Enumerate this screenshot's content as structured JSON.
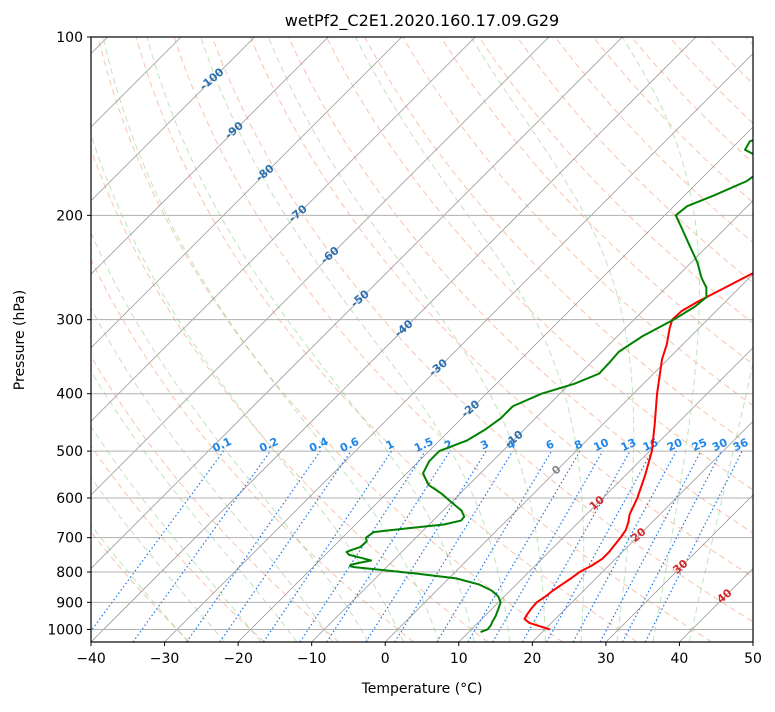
{
  "chart_data": {
    "type": "line",
    "title": "wetPf2_C2E1.2020.160.17.09.G29",
    "xlabel": "Temperature (°C)",
    "ylabel": "Pressure (hPa)",
    "xlim": [
      -40,
      50
    ],
    "ylim": [
      1050,
      100
    ],
    "y_scale": "log",
    "grid": true,
    "x_ticks": [
      -40,
      -30,
      -20,
      -10,
      0,
      10,
      20,
      30,
      40,
      50
    ],
    "x_tick_labels": [
      "−40",
      "−30",
      "−20",
      "−10",
      "0",
      "10",
      "20",
      "30",
      "40",
      "50"
    ],
    "y_ticks": [
      100,
      200,
      300,
      400,
      500,
      600,
      700,
      800,
      900,
      1000
    ],
    "y_tick_labels": [
      "100",
      "200",
      "300",
      "400",
      "500",
      "600",
      "700",
      "800",
      "900",
      "1000"
    ],
    "isotherm_labels": [
      {
        "t": -100,
        "p": 118,
        "text": "-100",
        "color": "#2a6fb0"
      },
      {
        "t": -90,
        "p": 144,
        "text": "-90",
        "color": "#2a6fb0"
      },
      {
        "t": -80,
        "p": 170,
        "text": "-80",
        "color": "#2a6fb0"
      },
      {
        "t": -70,
        "p": 199,
        "text": "-70",
        "color": "#2a6fb0"
      },
      {
        "t": -60,
        "p": 234,
        "text": "-60",
        "color": "#2a6fb0"
      },
      {
        "t": -50,
        "p": 277,
        "text": "-50",
        "color": "#2a6fb0"
      },
      {
        "t": -40,
        "p": 311,
        "text": "-40",
        "color": "#2a6fb0"
      },
      {
        "t": -30,
        "p": 362,
        "text": "-30",
        "color": "#2a6fb0"
      },
      {
        "t": -20,
        "p": 425,
        "text": "-20",
        "color": "#2a6fb0"
      },
      {
        "t": -10,
        "p": 478,
        "text": "-10",
        "color": "#2a6fb0"
      },
      {
        "t": 0,
        "p": 539,
        "text": "0",
        "color": "#888888"
      },
      {
        "t": 10,
        "p": 613,
        "text": "10",
        "color": "#d62728"
      },
      {
        "t": 20,
        "p": 694,
        "text": "20",
        "color": "#d62728"
      },
      {
        "t": 30,
        "p": 785,
        "text": "30",
        "color": "#d62728"
      },
      {
        "t": 40,
        "p": 880,
        "text": "40",
        "color": "#d62728"
      }
    ],
    "mixing_ratio_labels": [
      "0.1",
      "0.2",
      "0.4",
      "0.6",
      "1",
      "1.5",
      "2",
      "3",
      "4",
      "6",
      "8",
      "10",
      "13",
      "16",
      "20",
      "25",
      "30",
      "36"
    ],
    "mixing_ratio_values": [
      0.1,
      0.2,
      0.4,
      0.6,
      1,
      1.5,
      2,
      3,
      4,
      6,
      8,
      10,
      13,
      16,
      20,
      25,
      30,
      36
    ],
    "series": [
      {
        "role": "temperature",
        "color": "#ff0000",
        "points": [
          [
            1000,
            20.7
          ],
          [
            975,
            17.0
          ],
          [
            960,
            15.8
          ],
          [
            940,
            15.5
          ],
          [
            920,
            15.3
          ],
          [
            900,
            15.2
          ],
          [
            880,
            15.6
          ],
          [
            860,
            15.8
          ],
          [
            840,
            16.2
          ],
          [
            820,
            16.6
          ],
          [
            800,
            16.9
          ],
          [
            780,
            17.7
          ],
          [
            760,
            18.2
          ],
          [
            740,
            18.2
          ],
          [
            720,
            18.0
          ],
          [
            700,
            17.8
          ],
          [
            680,
            17.5
          ],
          [
            660,
            16.8
          ],
          [
            640,
            15.9
          ],
          [
            600,
            14.7
          ],
          [
            550,
            12.7
          ],
          [
            500,
            10.3
          ],
          [
            450,
            7.0
          ],
          [
            400,
            3.2
          ],
          [
            350,
            -0.8
          ],
          [
            330,
            -2.2
          ],
          [
            310,
            -4.0
          ],
          [
            300,
            -4.8
          ],
          [
            290,
            -4.7
          ],
          [
            280,
            -3.8
          ],
          [
            265,
            -2.0
          ],
          [
            250,
            -0.1
          ],
          [
            235,
            1.8
          ],
          [
            220,
            3.0
          ],
          [
            205,
            5.2
          ],
          [
            190,
            7.0
          ],
          [
            175,
            8.8
          ],
          [
            160,
            11.2
          ],
          [
            150,
            12.3
          ],
          [
            140,
            12.8
          ],
          [
            130,
            13.1
          ],
          [
            120,
            13.2
          ],
          [
            112,
            12.8
          ],
          [
            106,
            12.9
          ],
          [
            100,
            13.8
          ]
        ]
      },
      {
        "role": "dewpoint",
        "color": "#008000",
        "points": [
          [
            1010,
            11.6
          ],
          [
            1000,
            12.2
          ],
          [
            985,
            12.1
          ],
          [
            970,
            11.8
          ],
          [
            950,
            11.5
          ],
          [
            920,
            10.8
          ],
          [
            900,
            10.3
          ],
          [
            880,
            9.2
          ],
          [
            860,
            7.5
          ],
          [
            840,
            5.0
          ],
          [
            820,
            1.0
          ],
          [
            805,
            -5.0
          ],
          [
            790,
            -12.0
          ],
          [
            785,
            -14.4
          ],
          [
            782,
            -15.1
          ],
          [
            778,
            -15.2
          ],
          [
            772,
            -14.3
          ],
          [
            765,
            -13.0
          ],
          [
            758,
            -14.5
          ],
          [
            748,
            -16.8
          ],
          [
            740,
            -17.5
          ],
          [
            733,
            -17.0
          ],
          [
            726,
            -16.3
          ],
          [
            710,
            -16.2
          ],
          [
            700,
            -16.8
          ],
          [
            685,
            -16.5
          ],
          [
            675,
            -12.5
          ],
          [
            665,
            -8.0
          ],
          [
            655,
            -6.2
          ],
          [
            645,
            -6.3
          ],
          [
            630,
            -7.5
          ],
          [
            610,
            -10.0
          ],
          [
            590,
            -12.5
          ],
          [
            570,
            -15.5
          ],
          [
            545,
            -17.8
          ],
          [
            520,
            -18.6
          ],
          [
            500,
            -18.6
          ],
          [
            480,
            -16.3
          ],
          [
            460,
            -15.3
          ],
          [
            440,
            -14.7
          ],
          [
            420,
            -14.7
          ],
          [
            400,
            -12.5
          ],
          [
            385,
            -9.4
          ],
          [
            370,
            -7.4
          ],
          [
            355,
            -7.5
          ],
          [
            340,
            -7.7
          ],
          [
            320,
            -6.6
          ],
          [
            300,
            -4.6
          ],
          [
            285,
            -3.5
          ],
          [
            275,
            -3.2
          ],
          [
            265,
            -4.5
          ],
          [
            255,
            -6.5
          ],
          [
            240,
            -9.2
          ],
          [
            225,
            -12.5
          ],
          [
            210,
            -16.0
          ],
          [
            200,
            -18.5
          ],
          [
            193,
            -18.2
          ],
          [
            185,
            -16.0
          ],
          [
            175,
            -13.5
          ],
          [
            168,
            -13.0
          ],
          [
            160,
            -14.8
          ],
          [
            155,
            -18.0
          ],
          [
            150,
            -18.5
          ],
          [
            145,
            -16.0
          ],
          [
            138,
            -11.5
          ],
          [
            128,
            -3.0
          ],
          [
            118,
            2.8
          ],
          [
            110,
            4.5
          ],
          [
            106,
            4.5
          ],
          [
            100,
            4.0
          ]
        ]
      }
    ]
  }
}
